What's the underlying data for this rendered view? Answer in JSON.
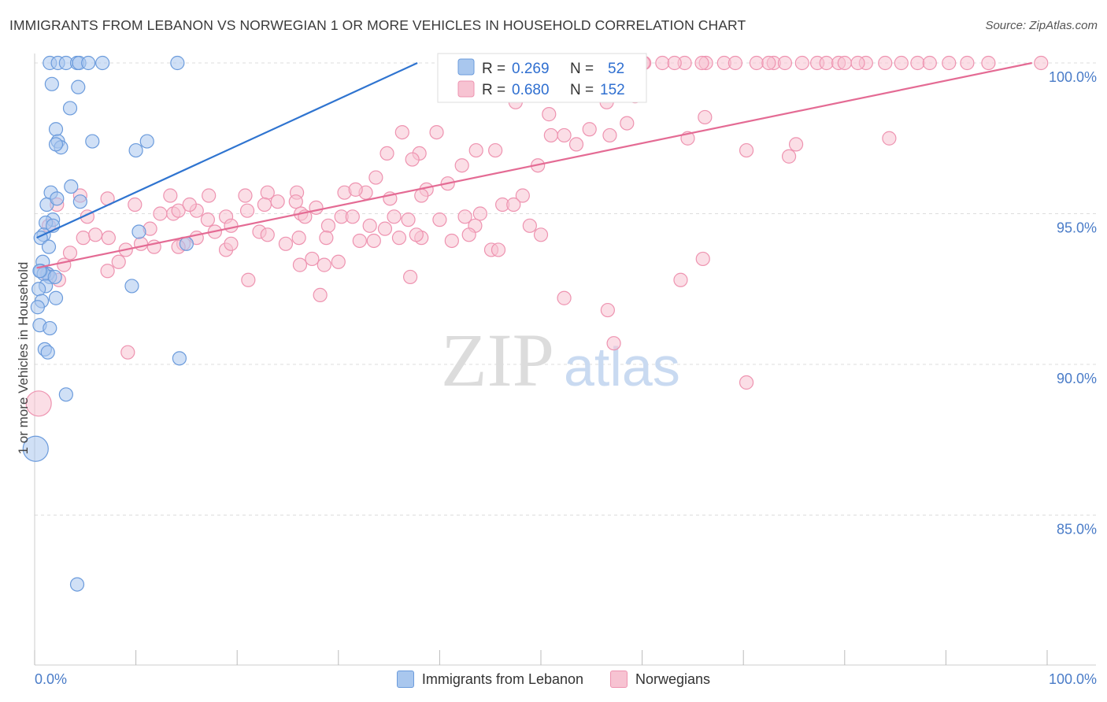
{
  "title": "IMMIGRANTS FROM LEBANON VS NORWEGIAN 1 OR MORE VEHICLES IN HOUSEHOLD CORRELATION CHART",
  "source": "Source: ZipAtlas.com",
  "watermark": {
    "zip": "ZIP",
    "atlas": "atlas"
  },
  "colors": {
    "blue_fill": "#a9c7ee",
    "blue_stroke": "#6b9bdc",
    "blue_line": "#2f74d0",
    "pink_fill": "#f7c3d2",
    "pink_stroke": "#ee93b0",
    "pink_line": "#e46b94",
    "axis_label": "#4a7cc8",
    "grid": "#dddddd"
  },
  "stats_legend": {
    "blue": {
      "r_label": "R =",
      "r_value": "0.269",
      "n_label": "N =",
      "n_value": "52"
    },
    "pink": {
      "r_label": "R =",
      "r_value": "0.680",
      "n_label": "N =",
      "n_value": "152"
    }
  },
  "chart_data": {
    "type": "scatter",
    "xlabel": "",
    "ylabel": "1 or more Vehicles in Household",
    "xlim": [
      0,
      100
    ],
    "ylim": [
      80.5,
      100.7
    ],
    "x_tick_labels": [
      "0.0%",
      "100.0%"
    ],
    "y_ticks": [
      85,
      90,
      95,
      100
    ],
    "y_tick_labels": [
      "85.0%",
      "90.0%",
      "95.0%",
      "100.0%"
    ],
    "grid": true,
    "legend": [
      "Immigrants from Lebanon",
      "Norwegians"
    ],
    "series": [
      {
        "name": "Immigrants from Lebanon",
        "color": "blue",
        "trend": {
          "x": [
            0.2,
            37.8
          ],
          "y": [
            94.2,
            100.0
          ]
        },
        "points": [
          [
            1.5,
            100.0
          ],
          [
            2.3,
            100.0
          ],
          [
            3.1,
            100.0
          ],
          [
            4.2,
            100.0
          ],
          [
            4.4,
            100.0
          ],
          [
            5.3,
            100.0
          ],
          [
            6.7,
            100.0
          ],
          [
            14.1,
            100.0
          ],
          [
            1.7,
            99.3
          ],
          [
            4.3,
            99.2
          ],
          [
            3.5,
            98.5
          ],
          [
            2.1,
            97.8
          ],
          [
            2.3,
            97.4
          ],
          [
            2.6,
            97.2
          ],
          [
            2.1,
            97.3
          ],
          [
            5.7,
            97.4
          ],
          [
            11.1,
            97.4
          ],
          [
            10.0,
            97.1
          ],
          [
            3.6,
            95.9
          ],
          [
            1.6,
            95.7
          ],
          [
            4.5,
            95.4
          ],
          [
            1.2,
            95.3
          ],
          [
            2.2,
            95.5
          ],
          [
            1.8,
            94.8
          ],
          [
            1.1,
            94.7
          ],
          [
            0.9,
            94.3
          ],
          [
            0.6,
            94.2
          ],
          [
            1.4,
            93.9
          ],
          [
            10.3,
            94.4
          ],
          [
            15.0,
            94.0
          ],
          [
            0.8,
            93.4
          ],
          [
            1.3,
            93.0
          ],
          [
            1.5,
            92.9
          ],
          [
            0.6,
            93.1
          ],
          [
            0.9,
            93.0
          ],
          [
            1.1,
            92.6
          ],
          [
            2.0,
            92.9
          ],
          [
            9.6,
            92.6
          ],
          [
            0.4,
            92.5
          ],
          [
            0.7,
            92.1
          ],
          [
            2.1,
            92.2
          ],
          [
            0.3,
            91.9
          ],
          [
            0.5,
            91.3
          ],
          [
            1.5,
            91.2
          ],
          [
            1.0,
            90.5
          ],
          [
            1.3,
            90.4
          ],
          [
            14.3,
            90.2
          ],
          [
            3.1,
            89.0
          ],
          [
            0.1,
            87.2
          ],
          [
            4.2,
            82.7
          ],
          [
            0.5,
            93.1
          ],
          [
            1.8,
            94.6
          ]
        ]
      },
      {
        "name": "Norwegians",
        "color": "pink",
        "trend": {
          "x": [
            0.2,
            98.5
          ],
          "y": [
            93.2,
            100.0
          ]
        },
        "points": [
          [
            60.2,
            100.0
          ],
          [
            62.0,
            100.0
          ],
          [
            64.2,
            100.0
          ],
          [
            66.3,
            100.0
          ],
          [
            68.1,
            100.0
          ],
          [
            69.2,
            100.0
          ],
          [
            71.3,
            100.0
          ],
          [
            73.0,
            100.0
          ],
          [
            74.1,
            100.0
          ],
          [
            77.3,
            100.0
          ],
          [
            78.2,
            100.0
          ],
          [
            79.4,
            100.0
          ],
          [
            80.0,
            100.0
          ],
          [
            82.1,
            100.0
          ],
          [
            84.0,
            100.0
          ],
          [
            87.2,
            100.0
          ],
          [
            90.3,
            100.0
          ],
          [
            92.1,
            100.0
          ],
          [
            94.2,
            100.0
          ],
          [
            99.4,
            100.0
          ],
          [
            60.1,
            100.0
          ],
          [
            63.2,
            100.0
          ],
          [
            65.9,
            100.0
          ],
          [
            72.5,
            100.0
          ],
          [
            75.8,
            100.0
          ],
          [
            81.3,
            100.0
          ],
          [
            85.6,
            100.0
          ],
          [
            88.4,
            100.0
          ],
          [
            46.9,
            99.2
          ],
          [
            59.3,
            98.9
          ],
          [
            47.5,
            98.7
          ],
          [
            56.5,
            98.7
          ],
          [
            50.8,
            98.3
          ],
          [
            66.2,
            98.2
          ],
          [
            58.5,
            98.0
          ],
          [
            54.8,
            97.8
          ],
          [
            51.0,
            97.6
          ],
          [
            52.3,
            97.6
          ],
          [
            56.8,
            97.6
          ],
          [
            53.5,
            97.3
          ],
          [
            64.5,
            97.5
          ],
          [
            74.5,
            96.9
          ],
          [
            70.3,
            97.1
          ],
          [
            75.2,
            97.3
          ],
          [
            84.4,
            97.5
          ],
          [
            36.3,
            97.7
          ],
          [
            39.7,
            97.7
          ],
          [
            38.0,
            97.0
          ],
          [
            34.8,
            97.0
          ],
          [
            37.3,
            96.8
          ],
          [
            43.6,
            97.1
          ],
          [
            45.5,
            97.1
          ],
          [
            49.7,
            96.6
          ],
          [
            42.2,
            96.6
          ],
          [
            33.7,
            96.2
          ],
          [
            40.8,
            96.0
          ],
          [
            38.7,
            95.8
          ],
          [
            38.2,
            95.6
          ],
          [
            35.1,
            95.5
          ],
          [
            48.2,
            95.6
          ],
          [
            32.7,
            95.7
          ],
          [
            30.6,
            95.7
          ],
          [
            31.7,
            95.8
          ],
          [
            25.9,
            95.7
          ],
          [
            23.0,
            95.7
          ],
          [
            20.8,
            95.6
          ],
          [
            17.2,
            95.6
          ],
          [
            13.4,
            95.6
          ],
          [
            9.9,
            95.3
          ],
          [
            7.2,
            95.5
          ],
          [
            2.2,
            95.3
          ],
          [
            4.5,
            95.6
          ],
          [
            5.2,
            94.9
          ],
          [
            1.4,
            94.6
          ],
          [
            7.3,
            94.2
          ],
          [
            4.8,
            94.2
          ],
          [
            6.0,
            94.3
          ],
          [
            11.4,
            94.5
          ],
          [
            13.7,
            95.0
          ],
          [
            12.4,
            95.0
          ],
          [
            14.2,
            95.1
          ],
          [
            16.0,
            95.1
          ],
          [
            15.3,
            95.3
          ],
          [
            18.9,
            94.9
          ],
          [
            21.0,
            95.1
          ],
          [
            22.7,
            95.3
          ],
          [
            24.0,
            95.4
          ],
          [
            25.8,
            95.4
          ],
          [
            26.3,
            95.0
          ],
          [
            27.8,
            95.2
          ],
          [
            26.7,
            94.9
          ],
          [
            29.0,
            94.6
          ],
          [
            30.3,
            94.9
          ],
          [
            31.4,
            94.9
          ],
          [
            33.1,
            94.6
          ],
          [
            35.5,
            94.9
          ],
          [
            36.9,
            94.8
          ],
          [
            42.5,
            94.9
          ],
          [
            44.0,
            95.0
          ],
          [
            46.2,
            95.3
          ],
          [
            47.3,
            95.3
          ],
          [
            40.0,
            94.8
          ],
          [
            43.5,
            94.6
          ],
          [
            34.6,
            94.5
          ],
          [
            28.8,
            94.2
          ],
          [
            26.1,
            94.2
          ],
          [
            22.2,
            94.4
          ],
          [
            19.4,
            94.6
          ],
          [
            17.8,
            94.4
          ],
          [
            17.1,
            94.8
          ],
          [
            16.0,
            94.2
          ],
          [
            14.7,
            94.0
          ],
          [
            10.5,
            94.0
          ],
          [
            9.0,
            93.8
          ],
          [
            8.3,
            93.4
          ],
          [
            3.5,
            93.7
          ],
          [
            2.4,
            92.8
          ],
          [
            2.9,
            93.3
          ],
          [
            1.2,
            93.0
          ],
          [
            7.2,
            93.1
          ],
          [
            11.8,
            93.9
          ],
          [
            14.2,
            93.9
          ],
          [
            23.0,
            94.3
          ],
          [
            27.4,
            93.5
          ],
          [
            26.2,
            93.3
          ],
          [
            28.6,
            93.3
          ],
          [
            30.0,
            93.4
          ],
          [
            21.1,
            92.8
          ],
          [
            18.9,
            93.8
          ],
          [
            28.2,
            92.3
          ],
          [
            37.1,
            92.9
          ],
          [
            38.2,
            94.2
          ],
          [
            33.5,
            94.1
          ],
          [
            36.0,
            94.2
          ],
          [
            41.2,
            94.1
          ],
          [
            42.9,
            94.3
          ],
          [
            45.1,
            93.8
          ],
          [
            45.8,
            93.8
          ],
          [
            50.0,
            94.3
          ],
          [
            48.9,
            94.6
          ],
          [
            52.3,
            92.2
          ],
          [
            56.6,
            91.8
          ],
          [
            57.2,
            90.7
          ],
          [
            66.0,
            93.5
          ],
          [
            63.8,
            92.8
          ],
          [
            70.3,
            89.4
          ],
          [
            9.2,
            90.4
          ],
          [
            37.7,
            94.3
          ],
          [
            32.1,
            94.1
          ],
          [
            24.8,
            94.0
          ],
          [
            0.4,
            88.7
          ],
          [
            19.4,
            94.0
          ]
        ]
      }
    ]
  },
  "bottom_legend": [
    {
      "label": "Immigrants from Lebanon",
      "color": "blue"
    },
    {
      "label": "Norwegians",
      "color": "pink"
    }
  ]
}
